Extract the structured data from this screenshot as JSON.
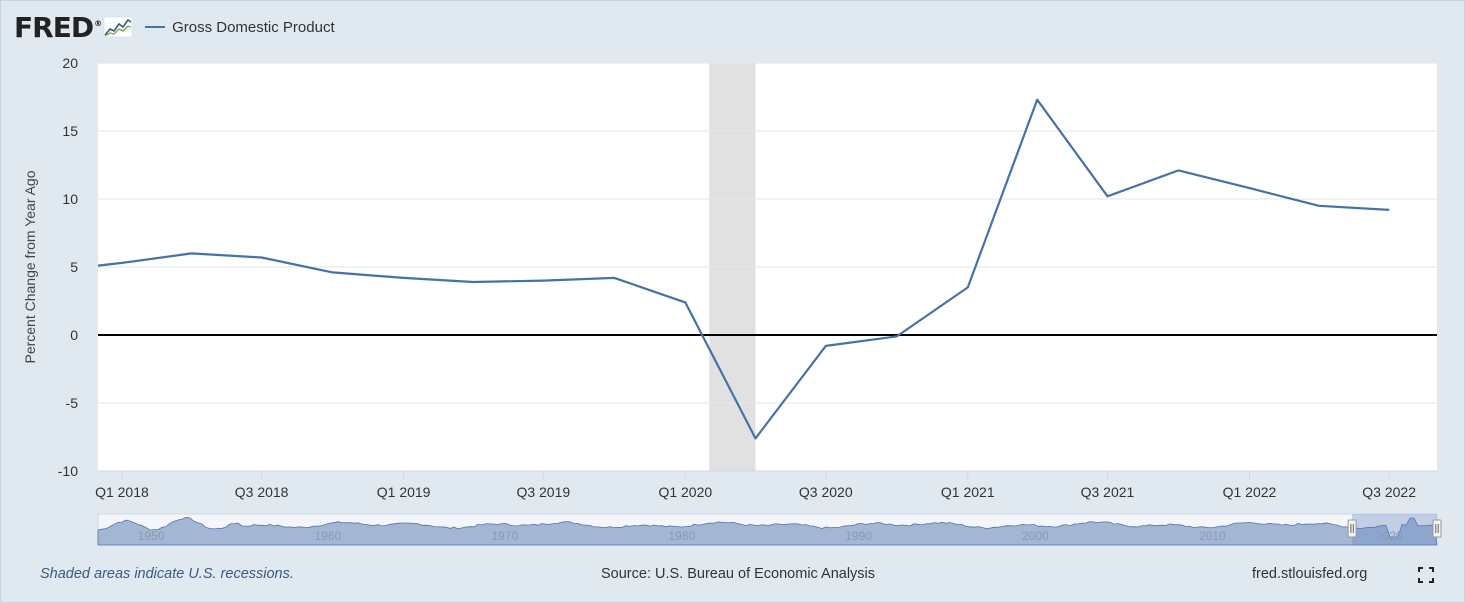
{
  "header": {
    "logo_text": "FRED",
    "logo_mark": "®",
    "legend_label": "Gross Domestic Product"
  },
  "footer": {
    "recession_note": "Shaded areas indicate U.S. recessions.",
    "source": "Source: U.S. Bureau of Economic Analysis",
    "url": "fred.stlouisfed.org"
  },
  "icons": {
    "logo_graph": "line-graph-icon",
    "fullscreen": "fullscreen-icon"
  },
  "colors": {
    "series": "#4572a7",
    "recession_shade": "#e1e1e1",
    "background": "#e1e9f0",
    "plot_background": "#ffffff",
    "zero_line": "#000000",
    "navigator_fill": "#9fb4d3"
  },
  "chart_data": {
    "type": "line",
    "title": "",
    "ylabel": "Percent Change from Year Ago",
    "xlabel": "",
    "ylim": [
      -10,
      20
    ],
    "yticks": [
      20,
      15,
      10,
      5,
      0,
      -5,
      -10
    ],
    "grid": true,
    "legend": "top-left",
    "series": [
      {
        "name": "Gross Domestic Product",
        "x": [
          "2017-10-01",
          "2018-01-01",
          "2018-04-01",
          "2018-07-01",
          "2018-10-01",
          "2019-01-01",
          "2019-04-01",
          "2019-07-01",
          "2019-10-01",
          "2020-01-01",
          "2020-04-01",
          "2020-07-01",
          "2020-10-01",
          "2021-01-01",
          "2021-04-01",
          "2021-07-01",
          "2021-10-01",
          "2022-01-01",
          "2022-04-01",
          "2022-07-01"
        ],
        "values": [
          5.1,
          5.3,
          6.0,
          5.7,
          4.6,
          4.2,
          3.9,
          4.0,
          4.2,
          2.4,
          -7.6,
          -0.8,
          -0.1,
          3.5,
          17.3,
          10.2,
          12.1,
          10.8,
          9.5,
          9.2
        ]
      }
    ],
    "x_range": [
      "2017-12-01",
      "2022-09-01"
    ],
    "x_tick_labels": [
      {
        "label": "Q1 2018",
        "date": "2018-01-01"
      },
      {
        "label": "Q3 2018",
        "date": "2018-07-01"
      },
      {
        "label": "Q1 2019",
        "date": "2019-01-01"
      },
      {
        "label": "Q3 2019",
        "date": "2019-07-01"
      },
      {
        "label": "Q1 2020",
        "date": "2020-01-01"
      },
      {
        "label": "Q3 2020",
        "date": "2020-07-01"
      },
      {
        "label": "Q1 2021",
        "date": "2021-01-01"
      },
      {
        "label": "Q3 2021",
        "date": "2021-07-01"
      },
      {
        "label": "Q1 2022",
        "date": "2022-01-01"
      },
      {
        "label": "Q3 2022",
        "date": "2022-07-01"
      }
    ],
    "recessions": [
      {
        "start": "2020-02-01",
        "end": "2020-04-01"
      }
    ],
    "navigator": {
      "labels": [
        "1950",
        "1960",
        "1970",
        "1980",
        "1990",
        "2000",
        "2010",
        "2020"
      ],
      "range_years": [
        1947,
        2022.7
      ],
      "selected_years": [
        2017.9,
        2022.7
      ]
    }
  }
}
